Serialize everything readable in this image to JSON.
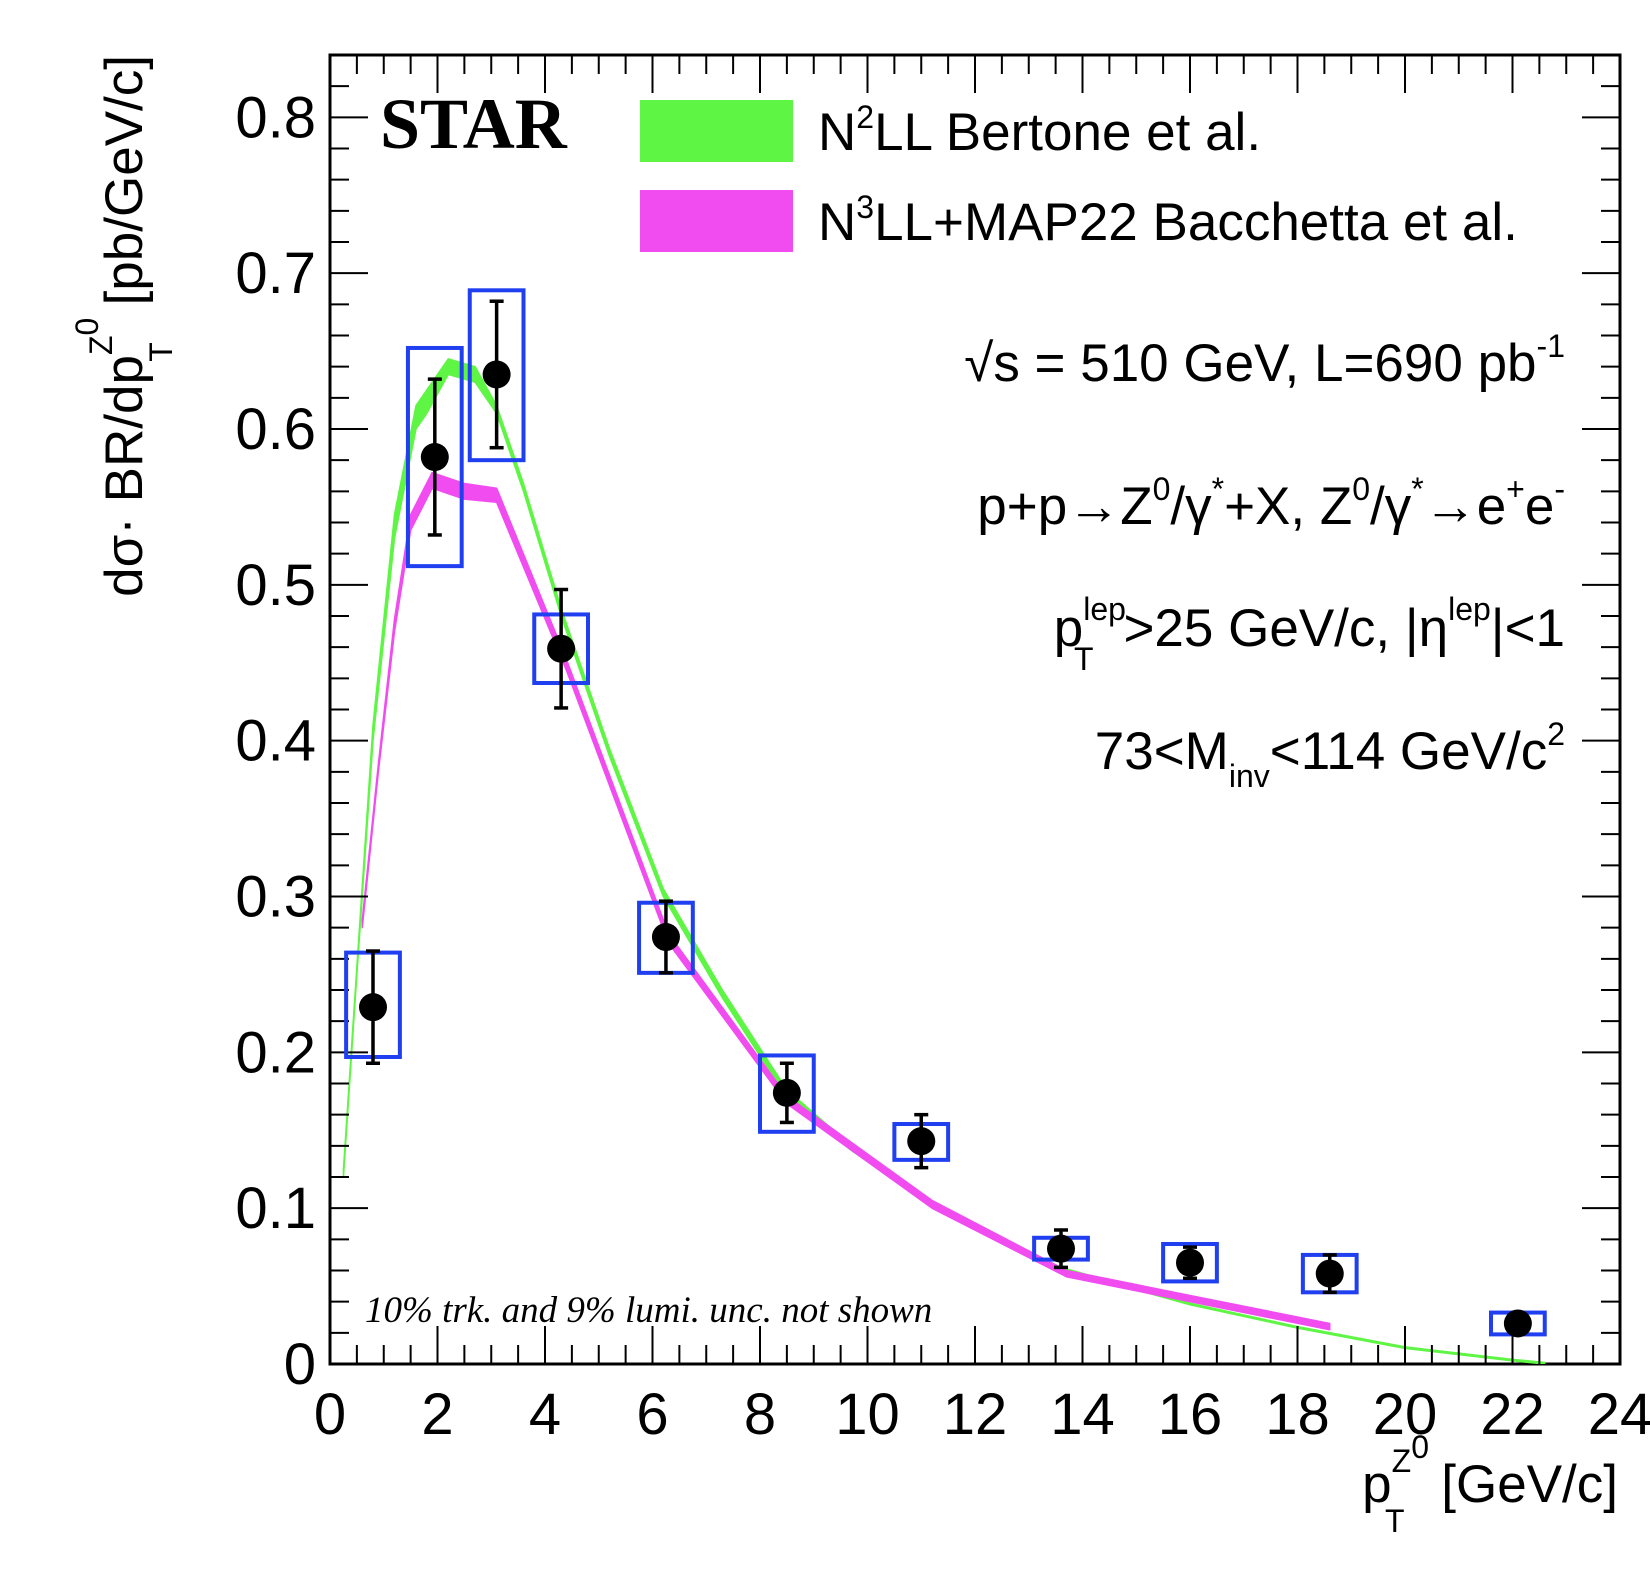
{
  "chart_data": {
    "type": "scatter",
    "experiment_label": "STAR",
    "xlabel": {
      "main": "p",
      "sup": "Z",
      "sup2": "0",
      "sub": "T",
      "unit": " [GeV/c]"
    },
    "ylabel": {
      "pre": "dσ· BR/dp",
      "sup": "Z",
      "sup2": "0",
      "sub": "T",
      "unit": " [pb/GeV/c]"
    },
    "xlim": [
      0,
      24
    ],
    "ylim": [
      0,
      0.84
    ],
    "x_ticks": [
      0,
      2,
      4,
      6,
      8,
      10,
      12,
      14,
      16,
      18,
      20,
      22,
      24
    ],
    "x_tick_labels": [
      "0",
      "2",
      "4",
      "6",
      "8",
      "10",
      "12",
      "14",
      "16",
      "18",
      "20",
      "22",
      "24"
    ],
    "y_ticks": [
      0,
      0.1,
      0.2,
      0.3,
      0.4,
      0.5,
      0.6,
      0.7,
      0.8
    ],
    "y_tick_labels": [
      "0",
      "0.1",
      "0.2",
      "0.3",
      "0.4",
      "0.5",
      "0.6",
      "0.7",
      "0.8"
    ],
    "legend": {
      "position": "top-right",
      "entries": [
        {
          "main": "N",
          "sup": "2",
          "rest": "LL Bertone et al.",
          "color": "#5ef544"
        },
        {
          "main": "N",
          "sup": "3",
          "rest": "LL+MAP22 Bacchetta et al.",
          "color": "#f04cf0"
        }
      ]
    },
    "annotations": {
      "energy": {
        "sqrt": "√",
        "text": "s = 510 GeV, L=690 pb",
        "sup": "-1"
      },
      "process": {
        "p1": "p+p→Z",
        "s1": "0",
        "p2": "/γ",
        "s2": "*",
        "p3": "+X, Z",
        "s3": "0",
        "p4": "/γ",
        "s4": "*",
        "p5": "→e",
        "s5": "+",
        "p6": "e",
        "s6": "-"
      },
      "cuts": {
        "p1": "p",
        "sup1": "lep",
        "sub1": "T",
        "p2": ">25 GeV/c, |η",
        "sup2": "lep",
        "p3": "|<1"
      },
      "mass": {
        "p1": "73<M",
        "sub1": "inv",
        "p2": "<114 GeV/c",
        "sup2": "2"
      },
      "note": "10% trk. and 9% lumi. unc. not shown"
    },
    "data_points": [
      {
        "x": 0.8,
        "y": 0.229,
        "stat": 0.036,
        "sys_x": [
          0.3,
          1.3
        ],
        "sys_y": [
          0.197,
          0.264
        ]
      },
      {
        "x": 1.95,
        "y": 0.582,
        "stat": 0.05,
        "sys_x": [
          1.45,
          2.45
        ],
        "sys_y": [
          0.512,
          0.652
        ]
      },
      {
        "x": 3.1,
        "y": 0.635,
        "stat": 0.047,
        "sys_x": [
          2.6,
          3.6
        ],
        "sys_y": [
          0.58,
          0.689
        ]
      },
      {
        "x": 4.3,
        "y": 0.459,
        "stat": 0.038,
        "sys_x": [
          3.8,
          4.8
        ],
        "sys_y": [
          0.437,
          0.481
        ]
      },
      {
        "x": 6.25,
        "y": 0.274,
        "stat": 0.023,
        "sys_x": [
          5.75,
          6.75
        ],
        "sys_y": [
          0.251,
          0.296
        ]
      },
      {
        "x": 8.5,
        "y": 0.174,
        "stat": 0.019,
        "sys_x": [
          8.0,
          9.0
        ],
        "sys_y": [
          0.149,
          0.198
        ]
      },
      {
        "x": 11.0,
        "y": 0.143,
        "stat": 0.017,
        "sys_x": [
          10.5,
          11.5
        ],
        "sys_y": [
          0.131,
          0.154
        ]
      },
      {
        "x": 13.6,
        "y": 0.074,
        "stat": 0.012,
        "sys_x": [
          13.1,
          14.1
        ],
        "sys_y": [
          0.067,
          0.081
        ]
      },
      {
        "x": 16.0,
        "y": 0.065,
        "stat": 0.01,
        "sys_x": [
          15.5,
          16.5
        ],
        "sys_y": [
          0.053,
          0.077
        ]
      },
      {
        "x": 18.6,
        "y": 0.058,
        "stat": 0.012,
        "sys_x": [
          18.1,
          19.1
        ],
        "sys_y": [
          0.046,
          0.07
        ]
      },
      {
        "x": 22.1,
        "y": 0.026,
        "stat": 0.004,
        "sys_x": [
          21.6,
          22.6
        ],
        "sys_y": [
          0.019,
          0.033
        ]
      }
    ],
    "series": [
      {
        "color": "#5ef544",
        "lower": [
          [
            0.25,
            0.12
          ],
          [
            0.5,
            0.25
          ],
          [
            0.8,
            0.4
          ],
          [
            1.2,
            0.53
          ],
          [
            1.6,
            0.6
          ],
          [
            1.8,
            0.61
          ],
          [
            2.2,
            0.635
          ],
          [
            2.7,
            0.63
          ],
          [
            3.1,
            0.61
          ],
          [
            3.6,
            0.56
          ],
          [
            4.3,
            0.48
          ],
          [
            5.2,
            0.39
          ],
          [
            6.2,
            0.3
          ],
          [
            7.3,
            0.235
          ],
          [
            8.5,
            0.171
          ],
          [
            9.7,
            0.137
          ],
          [
            11.2,
            0.102
          ],
          [
            13.6,
            0.061
          ],
          [
            16.0,
            0.038
          ],
          [
            18.0,
            0.023
          ],
          [
            20.0,
            0.01
          ],
          [
            22.0,
            0.002
          ],
          [
            22.6,
            0.0
          ]
        ],
        "upper": [
          [
            0.25,
            0.125
          ],
          [
            0.5,
            0.255
          ],
          [
            0.8,
            0.41
          ],
          [
            1.2,
            0.545
          ],
          [
            1.6,
            0.615
          ],
          [
            1.8,
            0.625
          ],
          [
            2.2,
            0.645
          ],
          [
            2.7,
            0.64
          ],
          [
            3.1,
            0.615
          ],
          [
            3.6,
            0.565
          ],
          [
            4.3,
            0.485
          ],
          [
            5.2,
            0.395
          ],
          [
            6.2,
            0.305
          ],
          [
            7.3,
            0.24
          ],
          [
            8.5,
            0.176
          ],
          [
            9.7,
            0.14
          ],
          [
            11.2,
            0.104
          ],
          [
            13.6,
            0.062
          ],
          [
            16.0,
            0.039
          ],
          [
            18.0,
            0.024
          ],
          [
            20.0,
            0.011
          ],
          [
            22.0,
            0.003
          ],
          [
            22.6,
            0.001
          ]
        ]
      },
      {
        "color": "#f04cf0",
        "lower": [
          [
            0.6,
            0.28
          ],
          [
            0.9,
            0.38
          ],
          [
            1.2,
            0.47
          ],
          [
            1.5,
            0.535
          ],
          [
            1.9,
            0.562
          ],
          [
            2.5,
            0.555
          ],
          [
            3.1,
            0.553
          ],
          [
            4.4,
            0.445
          ],
          [
            6.3,
            0.27
          ],
          [
            8.5,
            0.167
          ],
          [
            11.2,
            0.1
          ],
          [
            13.7,
            0.056
          ],
          [
            16.0,
            0.04
          ],
          [
            18.6,
            0.022
          ]
        ],
        "upper": [
          [
            0.6,
            0.285
          ],
          [
            0.9,
            0.385
          ],
          [
            1.2,
            0.478
          ],
          [
            1.5,
            0.545
          ],
          [
            1.9,
            0.572
          ],
          [
            2.5,
            0.565
          ],
          [
            3.1,
            0.562
          ],
          [
            4.4,
            0.452
          ],
          [
            6.3,
            0.276
          ],
          [
            8.5,
            0.172
          ],
          [
            11.2,
            0.105
          ],
          [
            13.7,
            0.06
          ],
          [
            16.0,
            0.044
          ],
          [
            18.6,
            0.026
          ]
        ]
      }
    ]
  }
}
